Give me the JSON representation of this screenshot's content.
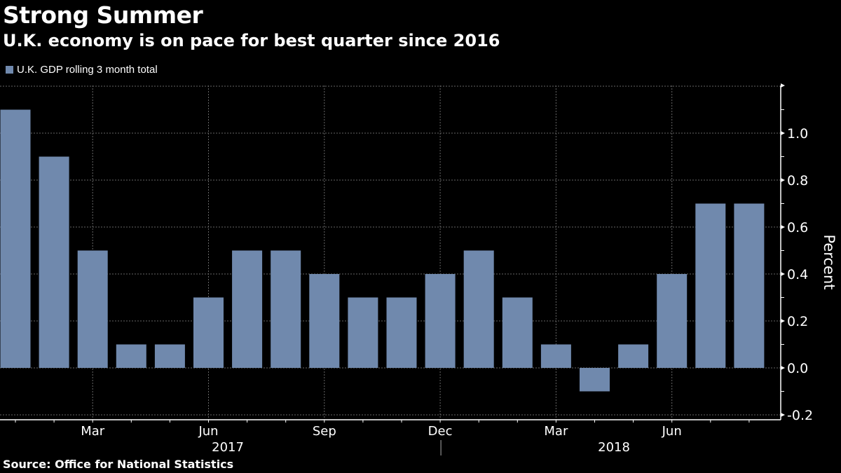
{
  "chart_data": {
    "type": "bar",
    "title": "Strong Summer",
    "subtitle": "U.K. economy is on pace for best quarter since 2016",
    "legend": [
      "U.K. GDP rolling 3 month total"
    ],
    "legend_position": "top-left",
    "ylabel": "Percent",
    "ylim": [
      -0.22,
      1.2
    ],
    "yticks": [
      "1.0",
      "0.8",
      "0.6",
      "0.4",
      "0.2",
      "0.0",
      "-0.2"
    ],
    "ytick_values": [
      1.0,
      0.8,
      0.6,
      0.4,
      0.2,
      0.0,
      -0.2
    ],
    "categories": [
      "Jan 2017",
      "Feb 2017",
      "Mar 2017",
      "Apr 2017",
      "May 2017",
      "Jun 2017",
      "Jul 2017",
      "Aug 2017",
      "Sep 2017",
      "Oct 2017",
      "Nov 2017",
      "Dec 2017",
      "Jan 2018",
      "Feb 2018",
      "Mar 2018",
      "Apr 2018",
      "May 2018",
      "Jun 2018",
      "Jul 2018",
      "Aug 2018"
    ],
    "values": [
      1.1,
      0.9,
      0.5,
      0.1,
      0.1,
      0.3,
      0.5,
      0.5,
      0.4,
      0.3,
      0.3,
      0.4,
      0.5,
      0.3,
      0.1,
      -0.1,
      0.1,
      0.4,
      0.7,
      0.7
    ],
    "xtick_labels": [
      {
        "index": 2,
        "label": "Mar"
      },
      {
        "index": 5,
        "label": "Jun"
      },
      {
        "index": 8,
        "label": "Sep"
      },
      {
        "index": 11,
        "label": "Dec"
      },
      {
        "index": 14,
        "label": "Mar"
      },
      {
        "index": 17,
        "label": "Jun"
      }
    ],
    "year_labels": [
      {
        "center_index": 5.5,
        "label": "2017"
      },
      {
        "center_index": 15.5,
        "label": "2018"
      }
    ],
    "grid": true,
    "bar_color": "#7089ad"
  },
  "source": "Source: Office for National Statistics"
}
